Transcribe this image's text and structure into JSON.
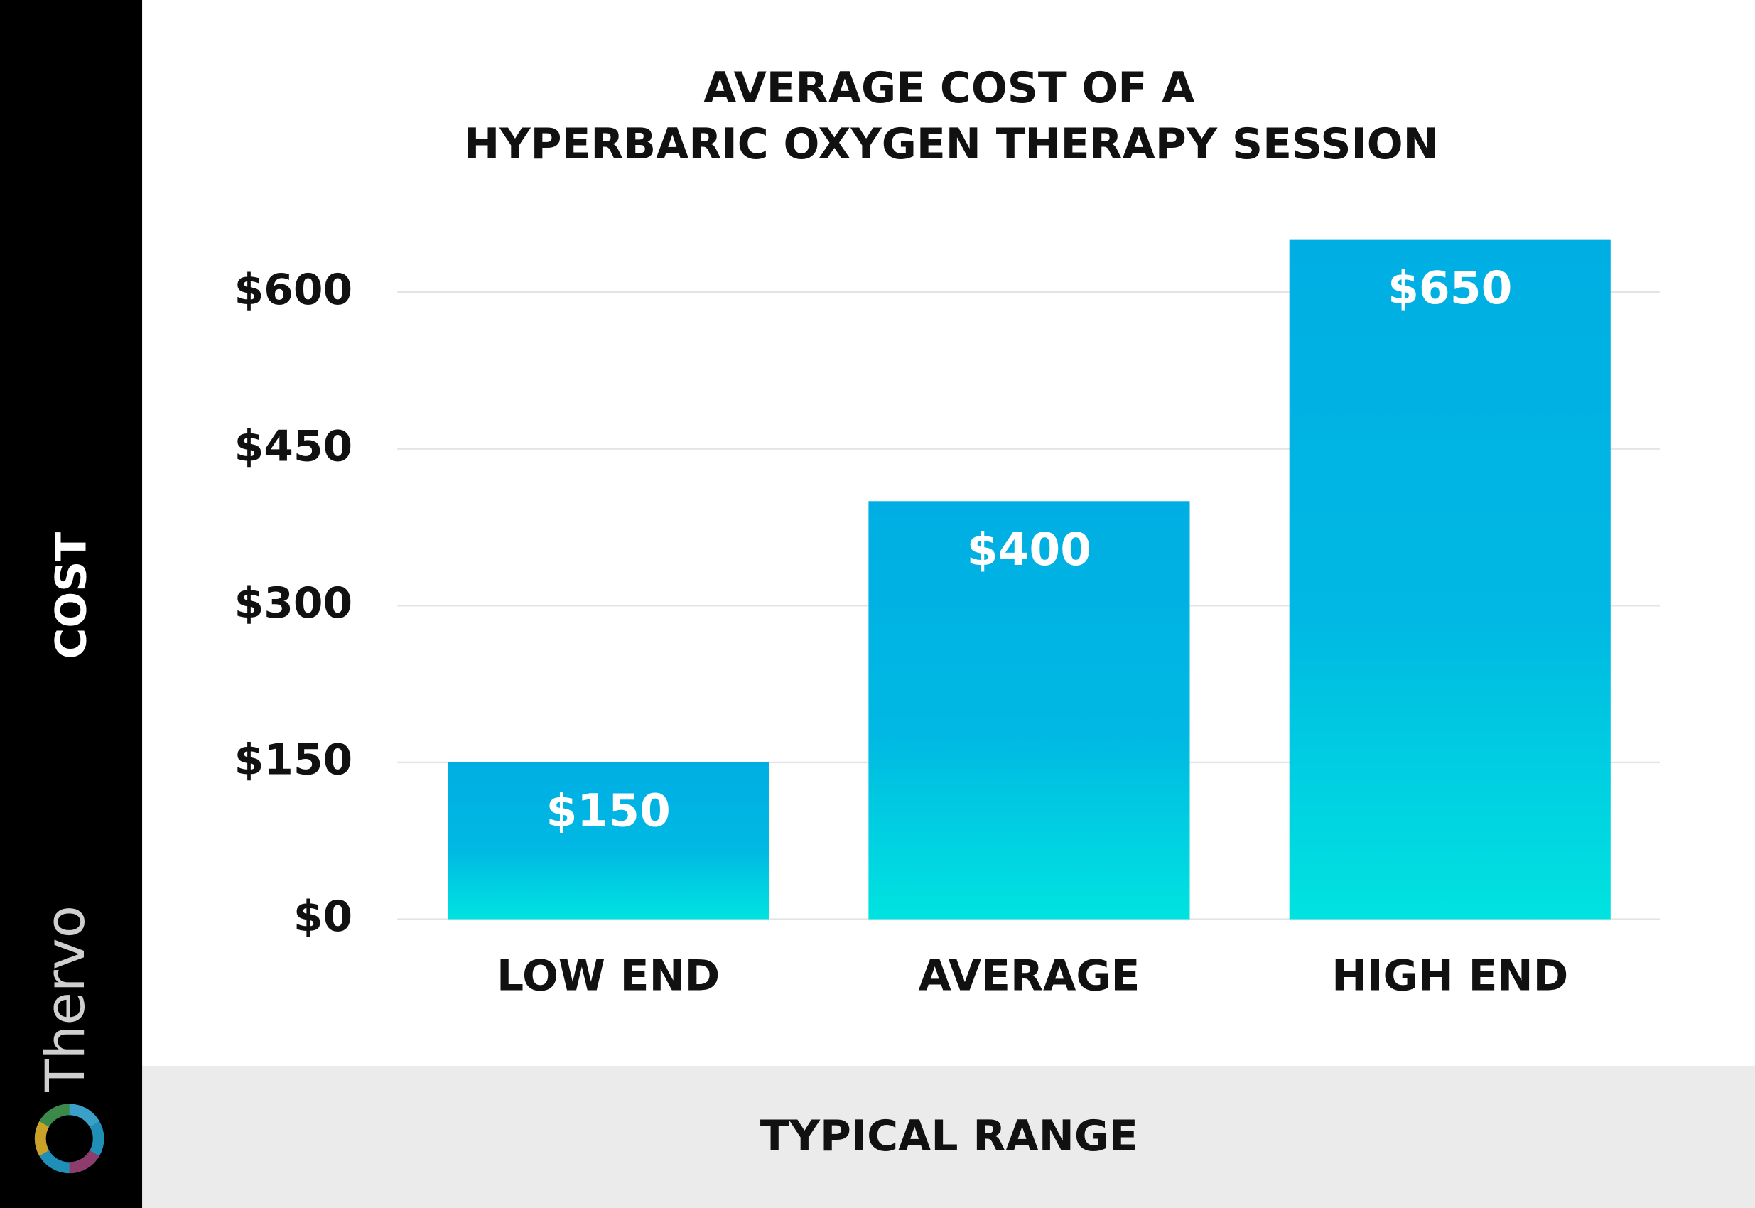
{
  "brand": "Thervo",
  "chart_data": {
    "type": "bar",
    "title": [
      "AVERAGE COST OF A",
      "HYPERBARIC OXYGEN THERAPY SESSION"
    ],
    "y_label": "COST",
    "x_label": "TYPICAL RANGE",
    "categories": [
      "LOW END",
      "AVERAGE",
      "HIGH END"
    ],
    "values": [
      150,
      400,
      650
    ],
    "value_labels": [
      "$150",
      "$400",
      "$650"
    ],
    "color": "#00aee3",
    "ylim": [
      0,
      650
    ],
    "yticks": [
      {
        "value": 0,
        "label": "$0"
      },
      {
        "value": 150,
        "label": "$150"
      },
      {
        "value": 300,
        "label": "$300"
      },
      {
        "value": 450,
        "label": "$450"
      },
      {
        "value": 600,
        "label": "$600"
      }
    ],
    "grid": true
  }
}
